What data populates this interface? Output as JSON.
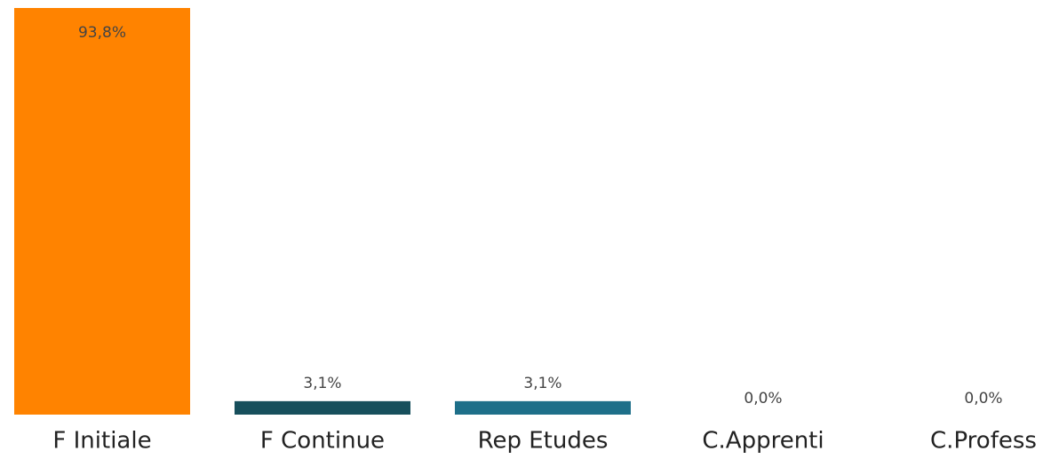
{
  "chart_data": {
    "type": "bar",
    "categories": [
      "F Initiale",
      "F Continue",
      "Rep Etudes",
      "C.Apprenti",
      "C.Profess"
    ],
    "values": [
      93.8,
      3.1,
      3.1,
      0,
      0
    ],
    "value_labels": [
      "93,8%",
      "3,1%",
      "3,1%",
      "0,0%",
      "0,0%"
    ],
    "colors": [
      "#ff8300",
      "#174f5c",
      "#1e6f89"
    ]
  }
}
